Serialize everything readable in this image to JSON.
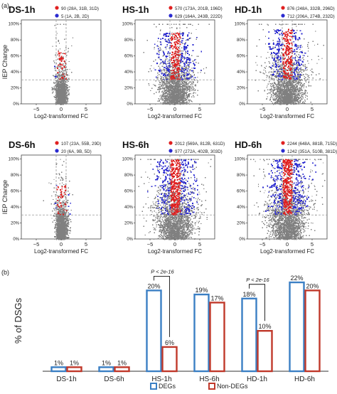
{
  "panel_labels": {
    "a": "(a)",
    "b": "(b)"
  },
  "scatter_common": {
    "xlabel": "Log2-transformed FC",
    "ylabel": "IEP Change",
    "xticks": [
      "−5",
      "0",
      "5"
    ],
    "yticks": [
      "0%",
      "20%",
      "40%",
      "60%",
      "80%",
      "100%"
    ],
    "xlim": [
      -8,
      8
    ],
    "ylim": [
      0,
      105
    ],
    "iep_threshold_percent": 30,
    "fc_threshold_log2": 1
  },
  "chart_data": [
    {
      "type": "scatter",
      "title": "DS-1h",
      "legend": [
        {
          "count": "90",
          "detail": "(28A, 31B, 31D)",
          "color": "#e02020"
        },
        {
          "count": "5",
          "detail": "(1A, 2B, 2D)",
          "color": "#2a2ad0"
        }
      ]
    },
    {
      "type": "scatter",
      "title": "HS-1h",
      "legend": [
        {
          "count": "570",
          "detail": "(173A, 201B, 196D)",
          "color": "#e02020"
        },
        {
          "count": "629",
          "detail": "(164A, 243B, 222D)",
          "color": "#2a2ad0"
        }
      ]
    },
    {
      "type": "scatter",
      "title": "HD-1h",
      "legend": [
        {
          "count": "876",
          "detail": "(248A, 332B, 296D)",
          "color": "#e02020"
        },
        {
          "count": "712",
          "detail": "(206A, 274B, 232D)",
          "color": "#2a2ad0"
        }
      ]
    },
    {
      "type": "scatter",
      "title": "DS-6h",
      "legend": [
        {
          "count": "107",
          "detail": "(23A, 55B, 29D)",
          "color": "#e02020"
        },
        {
          "count": "20",
          "detail": "(6A, 9B, 5D)",
          "color": "#2a2ad0"
        }
      ]
    },
    {
      "type": "scatter",
      "title": "HS-6h",
      "legend": [
        {
          "count": "2012",
          "detail": "(569A, 812B, 631D)",
          "color": "#e02020"
        },
        {
          "count": "977",
          "detail": "(272A, 402B, 303D)",
          "color": "#2a2ad0"
        }
      ]
    },
    {
      "type": "scatter",
      "title": "HD-6h",
      "legend": [
        {
          "count": "2244",
          "detail": "(648A, 881B, 715D)",
          "color": "#e02020"
        },
        {
          "count": "1242",
          "detail": "(351A, 510B, 381D)",
          "color": "#2a2ad0"
        }
      ]
    },
    {
      "type": "bar",
      "ylabel": "% of DSGs",
      "categories": [
        "DS-1h",
        "DS-6h",
        "HS-1h",
        "HS-6h",
        "HD-1h",
        "HD-6h"
      ],
      "series": [
        {
          "name": "DEGs",
          "values": [
            1,
            1,
            20,
            19,
            18,
            22
          ],
          "labels": [
            "1%",
            "1%",
            "20%",
            "19%",
            "18%",
            "22%"
          ],
          "color": "#3b7fc4"
        },
        {
          "name": "Non-DEGs",
          "values": [
            1,
            1,
            6,
            17,
            10,
            20
          ],
          "labels": [
            "1%",
            "1%",
            "6%",
            "17%",
            "10%",
            "20%"
          ],
          "color": "#c0392b"
        }
      ],
      "ylim": [
        0,
        25
      ],
      "annotations": [
        {
          "category": "HS-1h",
          "text": "P < 2e-16"
        },
        {
          "category": "HD-1h",
          "text": "P < 2e-16"
        }
      ],
      "legend_position": "bottom"
    }
  ]
}
